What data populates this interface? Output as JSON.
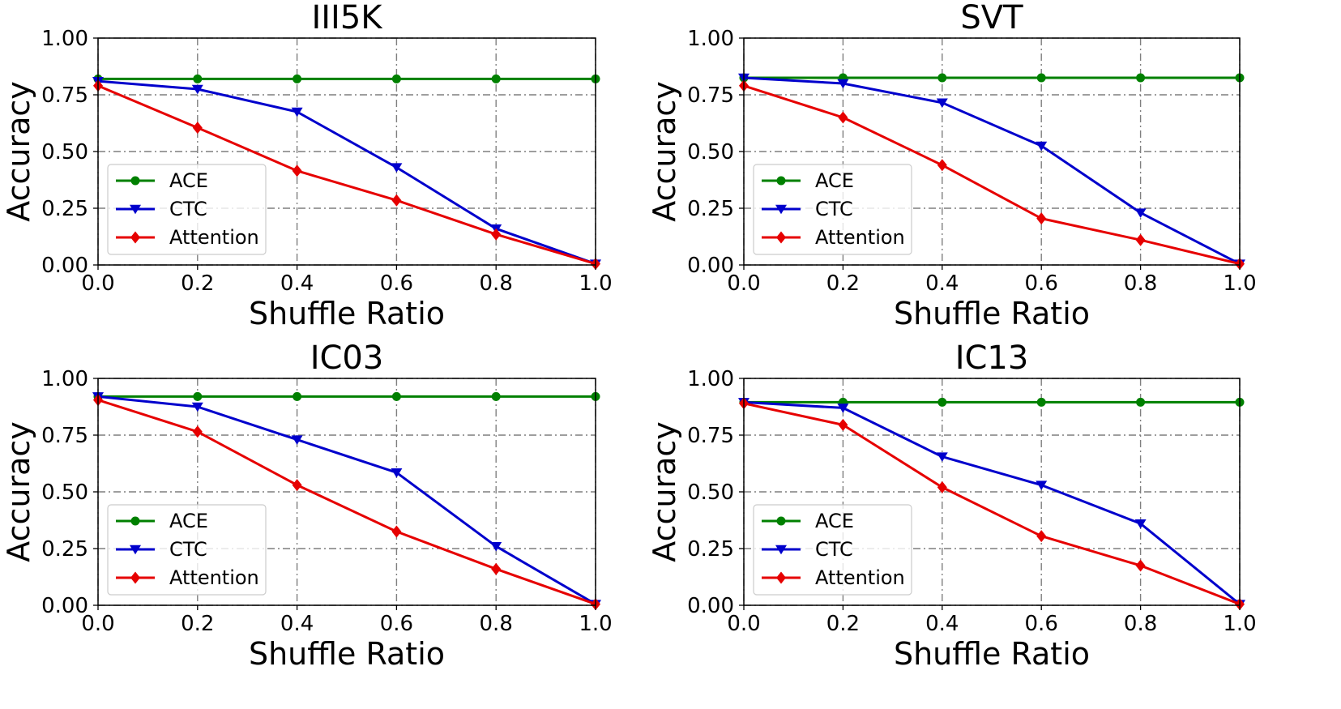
{
  "chart_data": [
    {
      "type": "line",
      "title": "III5K",
      "xlabel": "Shuffle Ratio",
      "ylabel": "Accuracy",
      "xlim": [
        0,
        1
      ],
      "ylim": [
        0,
        1
      ],
      "grid": true,
      "legend_position": "lower-left",
      "xticks": [
        "0.0",
        "0.2",
        "0.4",
        "0.6",
        "0.8",
        "1.0"
      ],
      "yticks": [
        "0.00",
        "0.25",
        "0.50",
        "0.75",
        "1.00"
      ],
      "x": [
        0.0,
        0.2,
        0.4,
        0.6,
        0.8,
        1.0
      ],
      "series": [
        {
          "name": "ACE",
          "color": "#008000",
          "marker": "circle",
          "values": [
            0.82,
            0.82,
            0.82,
            0.82,
            0.82,
            0.82
          ]
        },
        {
          "name": "CTC",
          "color": "#0000cc",
          "marker": "triangle-down",
          "values": [
            0.81,
            0.775,
            0.675,
            0.43,
            0.16,
            0.005
          ]
        },
        {
          "name": "Attention",
          "color": "#e60000",
          "marker": "diamond",
          "values": [
            0.79,
            0.605,
            0.415,
            0.285,
            0.135,
            0.005
          ]
        }
      ]
    },
    {
      "type": "line",
      "title": "SVT",
      "xlabel": "Shuffle Ratio",
      "ylabel": "Accuracy",
      "xlim": [
        0,
        1
      ],
      "ylim": [
        0,
        1
      ],
      "grid": true,
      "legend_position": "lower-left",
      "xticks": [
        "0.0",
        "0.2",
        "0.4",
        "0.6",
        "0.8",
        "1.0"
      ],
      "yticks": [
        "0.00",
        "0.25",
        "0.50",
        "0.75",
        "1.00"
      ],
      "x": [
        0.0,
        0.2,
        0.4,
        0.6,
        0.8,
        1.0
      ],
      "series": [
        {
          "name": "ACE",
          "color": "#008000",
          "marker": "circle",
          "values": [
            0.825,
            0.825,
            0.825,
            0.825,
            0.825,
            0.825
          ]
        },
        {
          "name": "CTC",
          "color": "#0000cc",
          "marker": "triangle-down",
          "values": [
            0.825,
            0.8,
            0.715,
            0.525,
            0.23,
            0.005
          ]
        },
        {
          "name": "Attention",
          "color": "#e60000",
          "marker": "diamond",
          "values": [
            0.79,
            0.65,
            0.44,
            0.205,
            0.11,
            0.005
          ]
        }
      ]
    },
    {
      "type": "line",
      "title": "IC03",
      "xlabel": "Shuffle Ratio",
      "ylabel": "Accuracy",
      "xlim": [
        0,
        1
      ],
      "ylim": [
        0,
        1
      ],
      "grid": true,
      "legend_position": "lower-left",
      "xticks": [
        "0.0",
        "0.2",
        "0.4",
        "0.6",
        "0.8",
        "1.0"
      ],
      "yticks": [
        "0.00",
        "0.25",
        "0.50",
        "0.75",
        "1.00"
      ],
      "x": [
        0.0,
        0.2,
        0.4,
        0.6,
        0.8,
        1.0
      ],
      "series": [
        {
          "name": "ACE",
          "color": "#008000",
          "marker": "circle",
          "values": [
            0.92,
            0.92,
            0.92,
            0.92,
            0.92,
            0.92
          ]
        },
        {
          "name": "CTC",
          "color": "#0000cc",
          "marker": "triangle-down",
          "values": [
            0.92,
            0.875,
            0.73,
            0.585,
            0.26,
            0.005
          ]
        },
        {
          "name": "Attention",
          "color": "#e60000",
          "marker": "diamond",
          "values": [
            0.905,
            0.765,
            0.53,
            0.325,
            0.16,
            0.005
          ]
        }
      ]
    },
    {
      "type": "line",
      "title": "IC13",
      "xlabel": "Shuffle Ratio",
      "ylabel": "Accuracy",
      "xlim": [
        0,
        1
      ],
      "ylim": [
        0,
        1
      ],
      "grid": true,
      "legend_position": "lower-left",
      "xticks": [
        "0.0",
        "0.2",
        "0.4",
        "0.6",
        "0.8",
        "1.0"
      ],
      "yticks": [
        "0.00",
        "0.25",
        "0.50",
        "0.75",
        "1.00"
      ],
      "x": [
        0.0,
        0.2,
        0.4,
        0.6,
        0.8,
        1.0
      ],
      "series": [
        {
          "name": "ACE",
          "color": "#008000",
          "marker": "circle",
          "values": [
            0.895,
            0.895,
            0.895,
            0.895,
            0.895,
            0.895
          ]
        },
        {
          "name": "CTC",
          "color": "#0000cc",
          "marker": "triangle-down",
          "values": [
            0.895,
            0.87,
            0.655,
            0.53,
            0.36,
            0.005
          ]
        },
        {
          "name": "Attention",
          "color": "#e60000",
          "marker": "diamond",
          "values": [
            0.89,
            0.795,
            0.52,
            0.305,
            0.175,
            0.005
          ]
        }
      ]
    }
  ]
}
